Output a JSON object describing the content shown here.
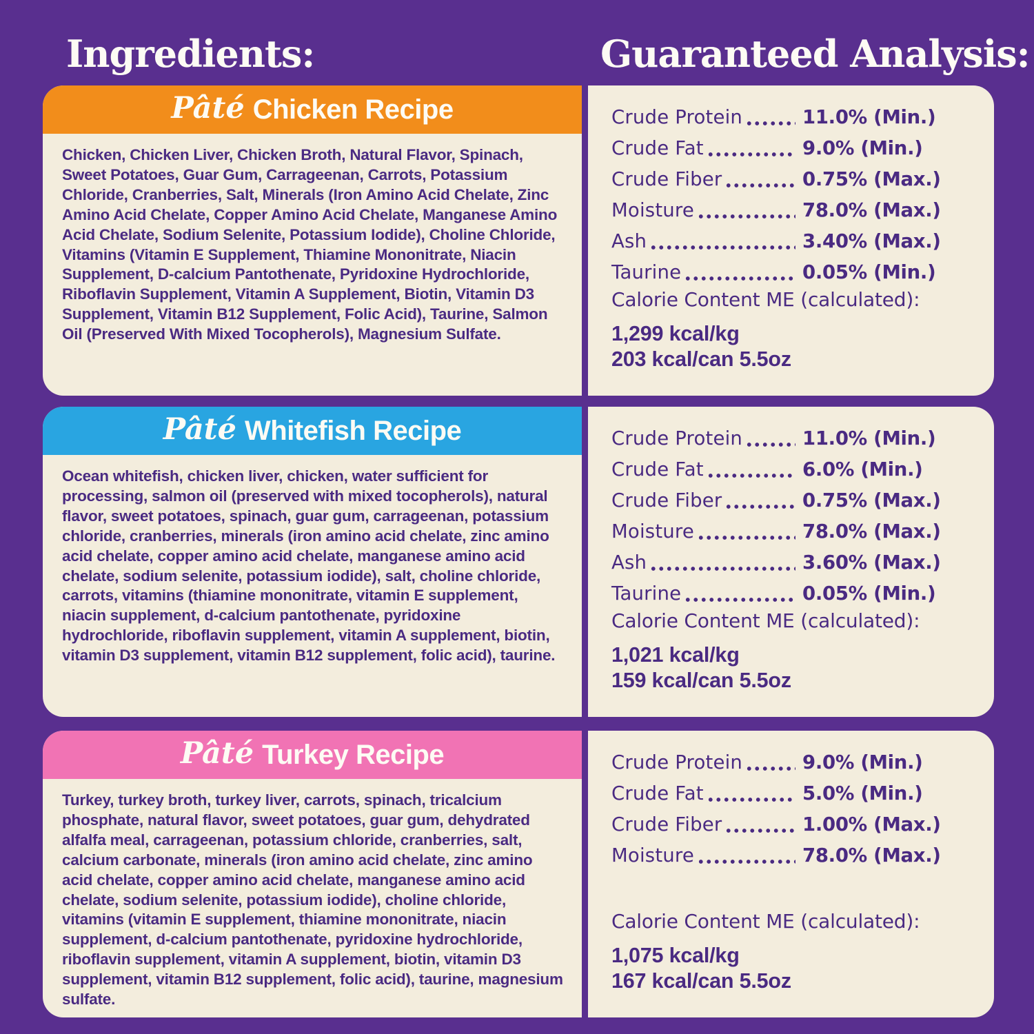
{
  "colors": {
    "background": "#592f8f",
    "card_background": "#f3eddd",
    "text": "#4a2a82",
    "chicken_header": "#f28d1b",
    "whitefish_header": "#29a5e1",
    "turkey_header": "#f173b4"
  },
  "headings": {
    "ingredients": "Ingredients:",
    "analysis": "Guaranteed Analysis:"
  },
  "recipes": [
    {
      "title_script": "Pâté",
      "title": "Chicken Recipe",
      "header_color": "#f28d1b",
      "ingredients": "Chicken, Chicken Liver, Chicken Broth, Natural Flavor, Spinach, Sweet Potatoes, Guar Gum, Carrageenan, Carrots, Potassium Chloride, Cranberries, Salt, Minerals (Iron Amino Acid Chelate, Zinc Amino Acid Chelate, Copper Amino Acid Chelate, Manganese Amino Acid Chelate, Sodium Selenite, Potassium Iodide), Choline Chloride, Vitamins (Vitamin E Supplement, Thiamine Mononitrate, Niacin Supplement, D-calcium Pantothenate, Pyridoxine Hydrochloride, Riboflavin Supplement, Vitamin A Supplement, Biotin, Vitamin D3 Supplement, Vitamin B12 Supplement, Folic Acid), Taurine, Salmon Oil (Preserved With Mixed Tocopherols), Magnesium Sulfate.",
      "analysis": [
        {
          "label": "Crude Protein",
          "value": "11.0% (Min.)"
        },
        {
          "label": "Crude Fat",
          "value": "9.0% (Min.)"
        },
        {
          "label": "Crude Fiber",
          "value": "0.75% (Max.)"
        },
        {
          "label": "Moisture",
          "value": "78.0% (Max.)"
        },
        {
          "label": "Ash",
          "value": "3.40% (Max.)"
        },
        {
          "label": "Taurine",
          "value": "0.05% (Min.)"
        }
      ],
      "calorie_heading": "Calorie Content ME (calculated):",
      "kcal_per_kg": "1,299 kcal/kg",
      "kcal_per_can": "203 kcal/can 5.5oz"
    },
    {
      "title_script": "Pâté",
      "title": "Whitefish Recipe",
      "header_color": "#29a5e1",
      "ingredients": "Ocean whitefish, chicken liver, chicken, water sufficient for processing, salmon oil (preserved with mixed tocopherols), natural flavor, sweet potatoes, spinach, guar gum, carrageenan, potassium chloride, cranberries, minerals (iron amino acid chelate, zinc amino acid chelate, copper amino acid chelate, manganese amino acid chelate, sodium selenite, potassium iodide), salt, choline chloride, carrots, vitamins (thiamine mononitrate, vitamin E supplement, niacin supplement, d-calcium pantothenate, pyridoxine hydrochloride, riboflavin supplement, vitamin A supplement, biotin, vitamin D3 supplement, vitamin B12 supplement, folic acid), taurine.",
      "analysis": [
        {
          "label": "Crude Protein",
          "value": "11.0% (Min.)"
        },
        {
          "label": "Crude Fat",
          "value": "6.0% (Min.)"
        },
        {
          "label": "Crude Fiber",
          "value": "0.75% (Max.)"
        },
        {
          "label": "Moisture",
          "value": "78.0% (Max.)"
        },
        {
          "label": "Ash",
          "value": "3.60% (Max.)"
        },
        {
          "label": "Taurine",
          "value": "0.05% (Min.)"
        }
      ],
      "calorie_heading": "Calorie Content ME (calculated):",
      "kcal_per_kg": "1,021 kcal/kg",
      "kcal_per_can": "159 kcal/can 5.5oz"
    },
    {
      "title_script": "Pâté",
      "title": "Turkey Recipe",
      "header_color": "#f173b4",
      "ingredients": "Turkey, turkey broth, turkey liver, carrots, spinach, tricalcium phosphate, natural flavor, sweet potatoes, guar gum, dehydrated alfalfa meal, carrageenan, potassium chloride, cranberries, salt, calcium carbonate, minerals (iron amino acid chelate, zinc amino acid chelate, copper amino acid chelate, manganese amino acid chelate, sodium selenite, potassium iodide), choline chloride, vitamins (vitamin E supplement, thiamine mononitrate, niacin supplement, d-calcium pantothenate, pyridoxine hydrochloride, riboflavin supplement, vitamin A supplement, biotin, vitamin D3 supplement, vitamin B12 supplement, folic acid), taurine, magnesium sulfate.",
      "analysis": [
        {
          "label": "Crude Protein",
          "value": "9.0% (Min.)"
        },
        {
          "label": "Crude Fat",
          "value": "5.0% (Min.)"
        },
        {
          "label": "Crude Fiber",
          "value": "1.00% (Max.)"
        },
        {
          "label": "Moisture",
          "value": "78.0% (Max.)"
        }
      ],
      "calorie_heading": "Calorie Content ME (calculated):",
      "kcal_per_kg": "1,075 kcal/kg",
      "kcal_per_can": "167 kcal/can 5.5oz"
    }
  ]
}
